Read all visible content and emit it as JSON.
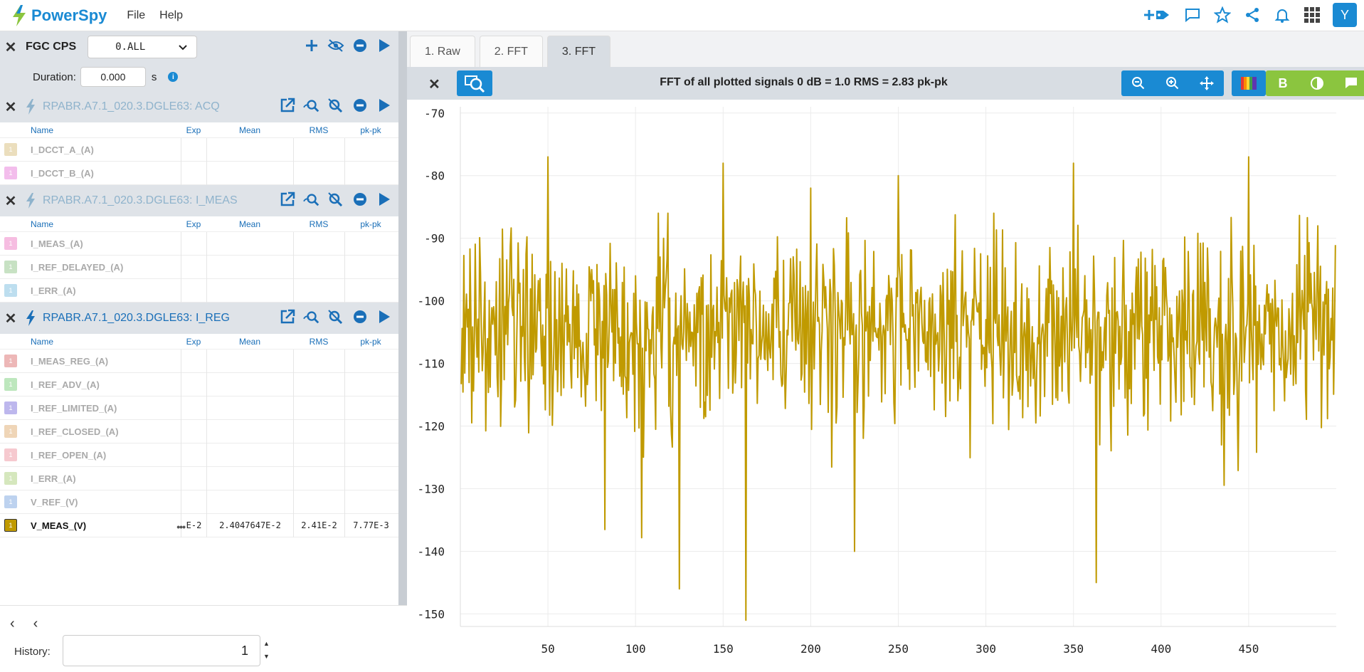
{
  "app": {
    "name": "PowerSpy",
    "menu": [
      "File",
      "Help"
    ],
    "user_initial": "Y"
  },
  "fgc": {
    "title": "FGC CPS",
    "selector": "0.ALL",
    "duration_label": "Duration:",
    "duration_value": "0.000",
    "duration_unit": "s"
  },
  "columns": {
    "name": "Name",
    "exp": "Exp",
    "mean": "Mean",
    "rms": "RMS",
    "pk": "pk-pk"
  },
  "groups": [
    {
      "title": "RPABR.A7.1_020.3.DGLE63: ACQ",
      "active": false,
      "signals": [
        {
          "name": "I_DCCT_A_(A)",
          "color": "#e5d3a8"
        },
        {
          "name": "I_DCCT_B_(A)",
          "color": "#f0a8e6"
        }
      ]
    },
    {
      "title": "RPABR.A7.1_020.3.DGLE63: I_MEAS",
      "active": false,
      "signals": [
        {
          "name": "I_MEAS_(A)",
          "color": "#f4a8d8"
        },
        {
          "name": "I_REF_DELAYED_(A)",
          "color": "#b5d8b0"
        },
        {
          "name": "I_ERR_(A)",
          "color": "#a8d4ea"
        }
      ]
    },
    {
      "title": "RPABR.A7.1_020.3.DGLE63: I_REG",
      "active": true,
      "signals": [
        {
          "name": "I_MEAS_REG_(A)",
          "color": "#e8a0a0"
        },
        {
          "name": "I_REF_ADV_(A)",
          "color": "#a8e0a8"
        },
        {
          "name": "I_REF_LIMITED_(A)",
          "color": "#a8a0e8"
        },
        {
          "name": "I_REF_CLOSED_(A)",
          "color": "#eac8a0"
        },
        {
          "name": "I_REF_OPEN_(A)",
          "color": "#f4b8c0"
        },
        {
          "name": "I_ERR_(A)",
          "color": "#c8e0a8"
        },
        {
          "name": "V_REF_(V)",
          "color": "#a8c4ea"
        },
        {
          "name": "V_MEAS_(V)",
          "color": "#c09a00",
          "active": true,
          "exp": "E-2",
          "mean": "2.4047647E-2",
          "rms": "2.41E-2",
          "pk": "7.77E-3"
        }
      ]
    }
  ],
  "swatch_label": "1",
  "bottom": {
    "history_label": "History:",
    "history_value": "1"
  },
  "tabs": [
    {
      "label": "1. Raw",
      "active": false
    },
    {
      "label": "2. FFT",
      "active": false
    },
    {
      "label": "3. FFT",
      "active": true
    }
  ],
  "plot": {
    "title": "FFT of all plotted signals 0 dB = 1.0 RMS = 2.83 pk-pk",
    "bold_label": "B"
  },
  "chart_data": {
    "type": "line",
    "title": "FFT of all plotted signals 0 dB = 1.0 RMS = 2.83 pk-pk",
    "xlabel": "",
    "ylabel": "",
    "xlim": [
      0,
      500
    ],
    "ylim": [
      -152,
      -69
    ],
    "xticks": [
      50,
      100,
      150,
      200,
      250,
      300,
      350,
      400,
      450
    ],
    "yticks": [
      -70,
      -80,
      -90,
      -100,
      -110,
      -120,
      -130,
      -140,
      -150
    ],
    "grid": true,
    "color": "#c09a00",
    "series": [
      {
        "x": [
          0,
          50,
          75,
          100,
          125,
          150,
          163,
          200,
          225,
          250,
          300,
          350,
          363,
          400,
          450,
          500
        ],
        "y": [
          -100,
          -77,
          -95,
          -96,
          -146,
          -78,
          -151,
          -82,
          -140,
          -80,
          -103,
          -78,
          -145,
          -104,
          -77,
          -105
        ]
      }
    ]
  }
}
